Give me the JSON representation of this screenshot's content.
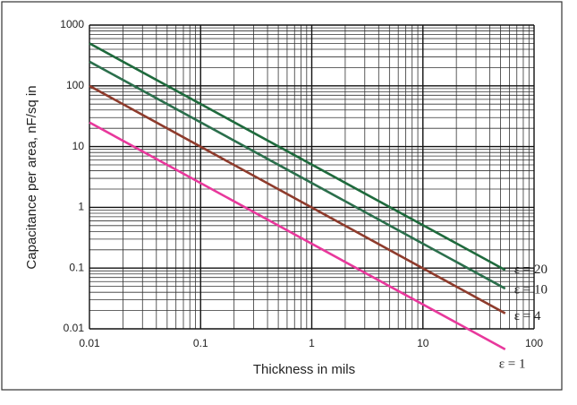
{
  "chart_data": {
    "type": "line",
    "xlabel": "Thickness in mils",
    "ylabel": "Capacitance per area, nF/sq in",
    "x": [
      0.01,
      55
    ],
    "series": [
      {
        "name": "ε = 20",
        "color": "#1e6a3c",
        "values": [
          500,
          0.093
        ]
      },
      {
        "name": "ε = 10",
        "color": "#2b6f4c",
        "values": [
          250,
          0.046
        ]
      },
      {
        "name": "ε = 4",
        "color": "#8e3b2c",
        "values": [
          100,
          0.018
        ]
      },
      {
        "name": "ε = 1",
        "color": "#e8389c",
        "values": [
          25,
          0.0046
        ]
      }
    ],
    "xlim": [
      0.01,
      100
    ],
    "ylim": [
      0.01,
      1000
    ],
    "xticks": [
      0.01,
      0.1,
      1,
      10,
      100
    ],
    "yticks": [
      0.01,
      0.1,
      1,
      10,
      100,
      1000
    ],
    "xscale": "log",
    "yscale": "log",
    "grid": true,
    "minor_grid": true
  }
}
